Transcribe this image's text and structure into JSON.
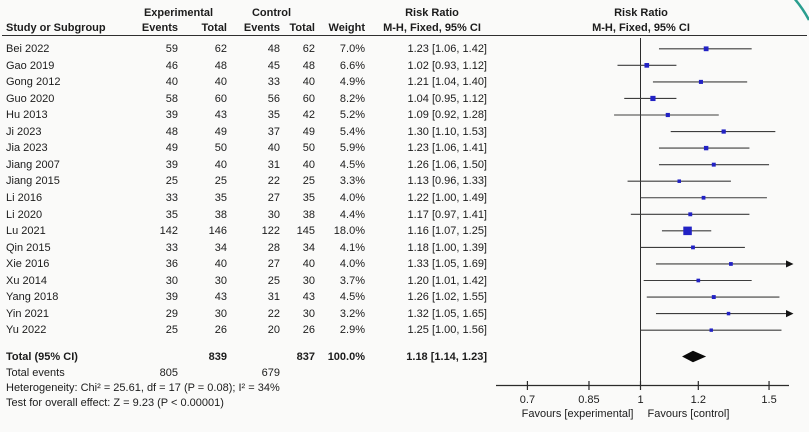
{
  "header": {
    "col_study": "Study or Subgroup",
    "group_experimental": "Experimental",
    "group_control": "Control",
    "col_events": "Events",
    "col_total": "Total",
    "col_weight": "Weight",
    "risk_ratio_title": "Risk Ratio",
    "method_label": "M-H, Fixed, 95% CI"
  },
  "chart_data": {
    "type": "forest",
    "effect_measure": "Risk Ratio",
    "method": "M-H, Fixed, 95% CI",
    "x_axis": {
      "scale": "log",
      "ticks": [
        0.7,
        0.85,
        1,
        1.2,
        1.5
      ],
      "tick_labels": [
        "0.7",
        "0.85",
        "1",
        "1.2",
        "1.5"
      ],
      "left_label": "Favours [experimental]",
      "right_label": "Favours [control]"
    },
    "studies": [
      {
        "name": "Bei 2022",
        "exp_events": 59,
        "exp_total": 62,
        "ctl_events": 48,
        "ctl_total": 62,
        "weight": "7.0%",
        "weight_value": 7.0,
        "rr": 1.23,
        "ci_low": 1.06,
        "ci_high": 1.42,
        "ci_text": "1.23 [1.06, 1.42]"
      },
      {
        "name": "Gao 2019",
        "exp_events": 46,
        "exp_total": 48,
        "ctl_events": 45,
        "ctl_total": 48,
        "weight": "6.6%",
        "weight_value": 6.6,
        "rr": 1.02,
        "ci_low": 0.93,
        "ci_high": 1.12,
        "ci_text": "1.02 [0.93, 1.12]"
      },
      {
        "name": "Gong 2012",
        "exp_events": 40,
        "exp_total": 40,
        "ctl_events": 33,
        "ctl_total": 40,
        "weight": "4.9%",
        "weight_value": 4.9,
        "rr": 1.21,
        "ci_low": 1.04,
        "ci_high": 1.4,
        "ci_text": "1.21 [1.04, 1.40]"
      },
      {
        "name": "Guo 2020",
        "exp_events": 58,
        "exp_total": 60,
        "ctl_events": 56,
        "ctl_total": 60,
        "weight": "8.2%",
        "weight_value": 8.2,
        "rr": 1.04,
        "ci_low": 0.95,
        "ci_high": 1.12,
        "ci_text": "1.04 [0.95, 1.12]"
      },
      {
        "name": "Hu 2013",
        "exp_events": 39,
        "exp_total": 43,
        "ctl_events": 35,
        "ctl_total": 42,
        "weight": "5.2%",
        "weight_value": 5.2,
        "rr": 1.09,
        "ci_low": 0.92,
        "ci_high": 1.28,
        "ci_text": "1.09 [0.92, 1.28]"
      },
      {
        "name": "Ji 2023",
        "exp_events": 48,
        "exp_total": 49,
        "ctl_events": 37,
        "ctl_total": 49,
        "weight": "5.4%",
        "weight_value": 5.4,
        "rr": 1.3,
        "ci_low": 1.1,
        "ci_high": 1.53,
        "ci_text": "1.30 [1.10, 1.53]"
      },
      {
        "name": "Jia 2023",
        "exp_events": 49,
        "exp_total": 50,
        "ctl_events": 40,
        "ctl_total": 50,
        "weight": "5.9%",
        "weight_value": 5.9,
        "rr": 1.23,
        "ci_low": 1.06,
        "ci_high": 1.41,
        "ci_text": "1.23 [1.06, 1.41]"
      },
      {
        "name": "Jiang 2007",
        "exp_events": 39,
        "exp_total": 40,
        "ctl_events": 31,
        "ctl_total": 40,
        "weight": "4.5%",
        "weight_value": 4.5,
        "rr": 1.26,
        "ci_low": 1.06,
        "ci_high": 1.5,
        "ci_text": "1.26 [1.06, 1.50]"
      },
      {
        "name": "Jiang 2015",
        "exp_events": 25,
        "exp_total": 25,
        "ctl_events": 22,
        "ctl_total": 25,
        "weight": "3.3%",
        "weight_value": 3.3,
        "rr": 1.13,
        "ci_low": 0.96,
        "ci_high": 1.33,
        "ci_text": "1.13 [0.96, 1.33]"
      },
      {
        "name": "Li 2016",
        "exp_events": 33,
        "exp_total": 35,
        "ctl_events": 27,
        "ctl_total": 35,
        "weight": "4.0%",
        "weight_value": 4.0,
        "rr": 1.22,
        "ci_low": 1.0,
        "ci_high": 1.49,
        "ci_text": "1.22 [1.00, 1.49]"
      },
      {
        "name": "Li 2020",
        "exp_events": 35,
        "exp_total": 38,
        "ctl_events": 30,
        "ctl_total": 38,
        "weight": "4.4%",
        "weight_value": 4.4,
        "rr": 1.17,
        "ci_low": 0.97,
        "ci_high": 1.41,
        "ci_text": "1.17 [0.97, 1.41]"
      },
      {
        "name": "Lu 2021",
        "exp_events": 142,
        "exp_total": 146,
        "ctl_events": 122,
        "ctl_total": 145,
        "weight": "18.0%",
        "weight_value": 18.0,
        "rr": 1.16,
        "ci_low": 1.07,
        "ci_high": 1.25,
        "ci_text": "1.16 [1.07, 1.25]"
      },
      {
        "name": "Qin 2015",
        "exp_events": 33,
        "exp_total": 34,
        "ctl_events": 28,
        "ctl_total": 34,
        "weight": "4.1%",
        "weight_value": 4.1,
        "rr": 1.18,
        "ci_low": 1.0,
        "ci_high": 1.39,
        "ci_text": "1.18 [1.00, 1.39]"
      },
      {
        "name": "Xie 2016",
        "exp_events": 36,
        "exp_total": 40,
        "ctl_events": 27,
        "ctl_total": 40,
        "weight": "4.0%",
        "weight_value": 4.0,
        "rr": 1.33,
        "ci_low": 1.05,
        "ci_high": 1.69,
        "ci_text": "1.33 [1.05, 1.69]"
      },
      {
        "name": "Xu 2014",
        "exp_events": 30,
        "exp_total": 30,
        "ctl_events": 25,
        "ctl_total": 30,
        "weight": "3.7%",
        "weight_value": 3.7,
        "rr": 1.2,
        "ci_low": 1.01,
        "ci_high": 1.42,
        "ci_text": "1.20 [1.01, 1.42]"
      },
      {
        "name": "Yang 2018",
        "exp_events": 39,
        "exp_total": 43,
        "ctl_events": 31,
        "ctl_total": 43,
        "weight": "4.5%",
        "weight_value": 4.5,
        "rr": 1.26,
        "ci_low": 1.02,
        "ci_high": 1.55,
        "ci_text": "1.26 [1.02, 1.55]"
      },
      {
        "name": "Yin 2021",
        "exp_events": 29,
        "exp_total": 30,
        "ctl_events": 22,
        "ctl_total": 30,
        "weight": "3.2%",
        "weight_value": 3.2,
        "rr": 1.32,
        "ci_low": 1.05,
        "ci_high": 1.65,
        "ci_text": "1.32 [1.05, 1.65]"
      },
      {
        "name": "Yu 2022",
        "exp_events": 25,
        "exp_total": 26,
        "ctl_events": 20,
        "ctl_total": 26,
        "weight": "2.9%",
        "weight_value": 2.9,
        "rr": 1.25,
        "ci_low": 1.0,
        "ci_high": 1.56,
        "ci_text": "1.25 [1.00, 1.56]"
      }
    ],
    "total": {
      "label": "Total (95% CI)",
      "exp_total": 839,
      "ctl_total": 837,
      "weight": "100.0%",
      "rr": 1.18,
      "ci_low": 1.14,
      "ci_high": 1.23,
      "ci_text": "1.18 [1.14, 1.23]"
    },
    "total_events": {
      "label": "Total events",
      "experimental": 805,
      "control": 679
    },
    "heterogeneity": "Heterogeneity: Chi² = 25.61, df = 17 (P = 0.08); I² = 34%",
    "overall_effect": "Test for overall effect: Z = 9.23 (P < 0.00001)"
  },
  "plot_style": {
    "square_color": "#2222c4",
    "line_color": "#3d3d3d",
    "axis_color": "#2b2b2b",
    "diamond_color": "#0a0a0a",
    "arc_color": "#2a9e8f"
  }
}
